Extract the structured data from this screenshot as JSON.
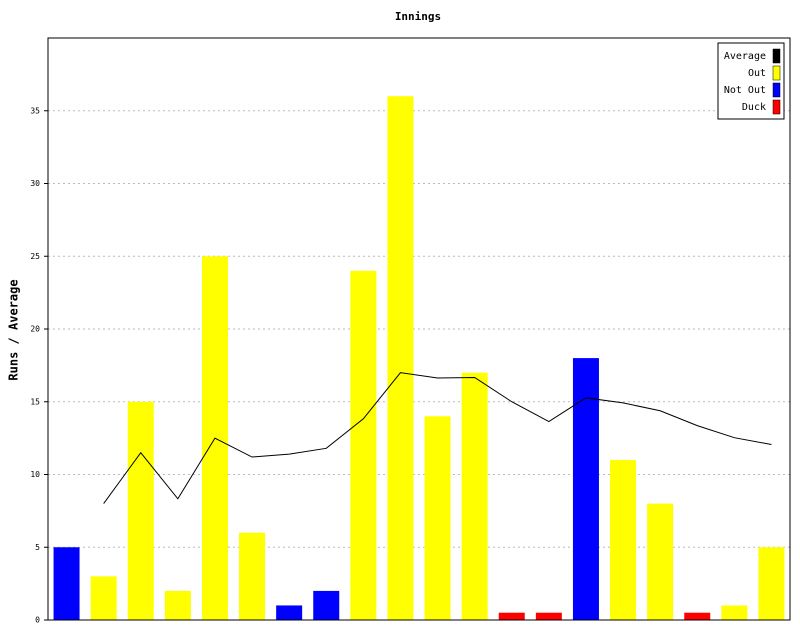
{
  "chart_data": {
    "type": "bar",
    "title": "Innings",
    "y_label": "Runs / Average",
    "ylim": [
      0,
      40
    ],
    "yticks": [
      0,
      5,
      10,
      15,
      20,
      25,
      30,
      35
    ],
    "grid": true,
    "legend": "top-right",
    "series": [
      {
        "name": "Average",
        "color": "#000000",
        "type": "line",
        "values": [
          null,
          8,
          11.5,
          8.33,
          12.5,
          11.2,
          11.4,
          11.8,
          13.83,
          17,
          16.63,
          16.67,
          15,
          13.64,
          15.27,
          14.92,
          14.38,
          13.36,
          12.53,
          12.06
        ]
      },
      {
        "name": "Out",
        "color": "#ffff00",
        "type": "bar",
        "values": [
          null,
          3,
          15,
          2,
          25,
          6,
          null,
          null,
          24,
          36,
          14,
          17,
          null,
          null,
          null,
          11,
          8,
          null,
          1,
          5
        ]
      },
      {
        "name": "Not Out",
        "color": "#0000ff",
        "type": "bar",
        "values": [
          5,
          null,
          null,
          null,
          null,
          null,
          1,
          2,
          null,
          null,
          null,
          null,
          null,
          null,
          18,
          null,
          null,
          null,
          null,
          null
        ]
      },
      {
        "name": "Duck",
        "color": "#ff0000",
        "type": "bar",
        "values": [
          null,
          null,
          null,
          null,
          null,
          null,
          null,
          null,
          null,
          null,
          null,
          null,
          0.5,
          0.5,
          null,
          null,
          null,
          0.5,
          null,
          null
        ]
      }
    ]
  }
}
